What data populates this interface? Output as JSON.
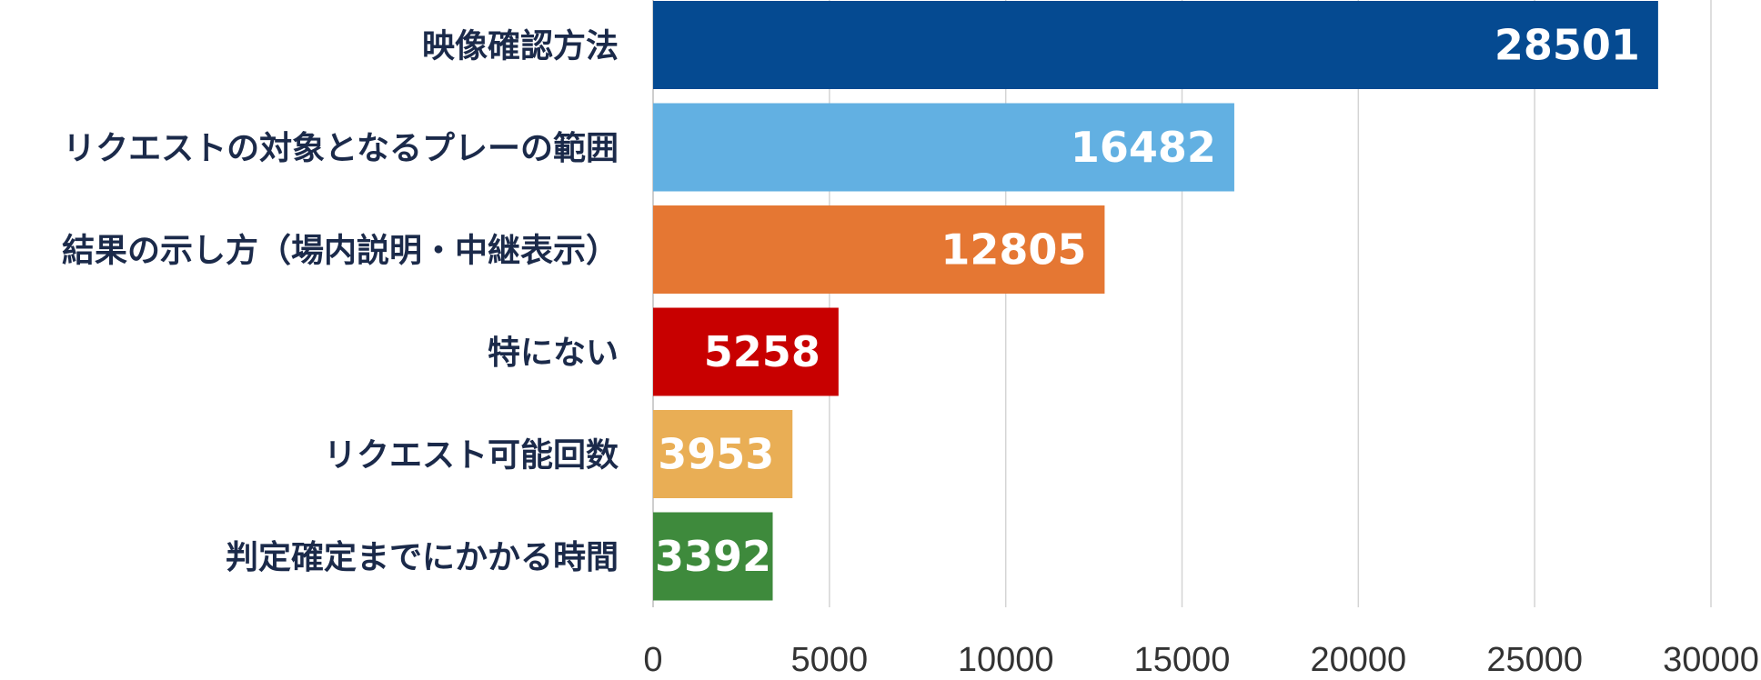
{
  "chart_data": {
    "type": "bar",
    "orientation": "horizontal",
    "categories": [
      "映像確認方法",
      "リクエストの対象となるプレーの範囲",
      "結果の示し方（場内説明・中継表示）",
      "特にない",
      "リクエスト可能回数",
      "判定確定までにかかる時間"
    ],
    "values": [
      28501,
      16482,
      12805,
      5258,
      3953,
      3392
    ],
    "colors": [
      "#054a91",
      "#62b0e2",
      "#e57733",
      "#c80000",
      "#e9ae55",
      "#3e8a3c"
    ],
    "xlim": [
      0,
      30000
    ],
    "x_ticks": [
      0,
      5000,
      10000,
      15000,
      20000,
      25000,
      30000
    ],
    "grid": true,
    "data_labels": true
  }
}
